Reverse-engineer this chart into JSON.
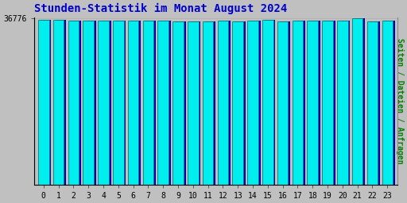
{
  "title": "Stunden-Statistik im Monat August 2024",
  "ylabel": "Seiten / Dateien / Anfragen",
  "xlabel_values": [
    0,
    1,
    2,
    3,
    4,
    5,
    6,
    7,
    8,
    9,
    10,
    11,
    12,
    13,
    14,
    15,
    16,
    17,
    18,
    19,
    20,
    21,
    22,
    23
  ],
  "values": [
    36500,
    36520,
    36350,
    36390,
    36250,
    36270,
    36380,
    36390,
    36230,
    36160,
    36190,
    36210,
    36240,
    36200,
    36220,
    36430,
    36210,
    36250,
    36230,
    36290,
    36260,
    36776,
    36160,
    36310
  ],
  "bar_face_color": "#00EEEE",
  "bar_edge_color": "#008080",
  "bar_shadow_color": "#0000AA",
  "background_color": "#C0C0C0",
  "plot_bg_color": "#C0C0C0",
  "title_color": "#0000CC",
  "ylabel_color": "#008000",
  "tick_label_color": "#000000",
  "ytick_label": "36776",
  "ytick_value": 36776,
  "ylim_min": 0,
  "ylim_max": 36776,
  "title_fontsize": 10,
  "ylabel_fontsize": 7,
  "xlabel_fontsize": 7,
  "figsize": [
    5.12,
    2.56
  ],
  "dpi": 100
}
